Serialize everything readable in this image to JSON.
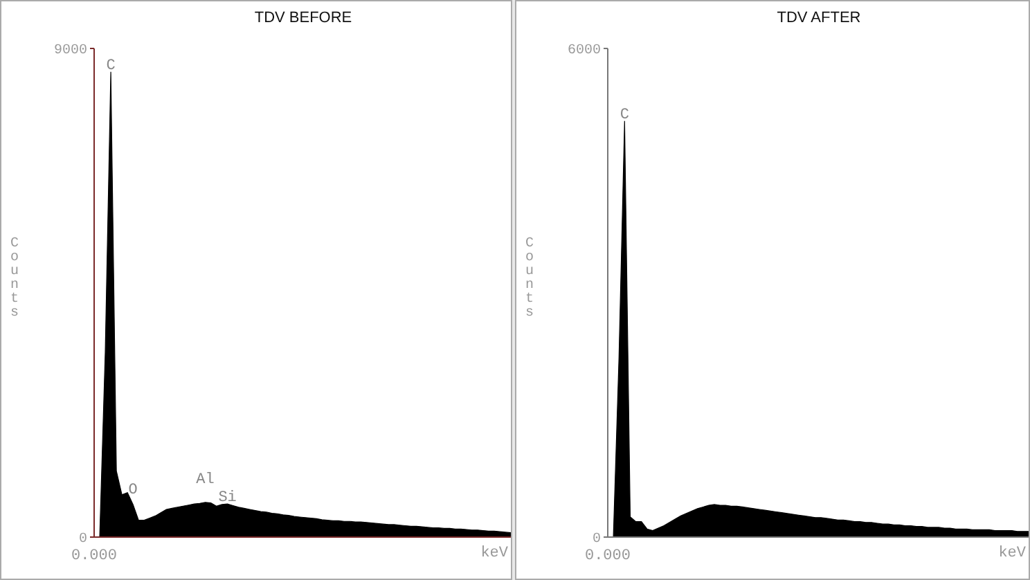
{
  "chart_data": [
    {
      "type": "area",
      "title": "TDV BEFORE",
      "xlabel": "keV",
      "ylabel": "Counts",
      "annotations": [
        "C",
        "O",
        "Al",
        "Si"
      ],
      "categories": [
        "0.000",
        null,
        null,
        null,
        null,
        null,
        null,
        null,
        null,
        null,
        null,
        null,
        null,
        null,
        null,
        null,
        null,
        null,
        null,
        null,
        null,
        null,
        null,
        null,
        null,
        null,
        null,
        null,
        null,
        null,
        null,
        null,
        null,
        null,
        null,
        null,
        null,
        null,
        null,
        null,
        null,
        null,
        null,
        null,
        null,
        null,
        null,
        null,
        null,
        null,
        null,
        null,
        null,
        null,
        null,
        null,
        null,
        null,
        null,
        null,
        null,
        null,
        null,
        null,
        null,
        null,
        null,
        null,
        null,
        null,
        null,
        null,
        null,
        null,
        null,
        null
      ],
      "series": [
        {
          "color": "#000000",
          "values": [
            0,
            0,
            3400,
            8570,
            1220,
            780,
            820,
            600,
            310,
            310,
            350,
            390,
            450,
            510,
            530,
            550,
            570,
            590,
            610,
            620,
            640,
            630,
            570,
            600,
            610,
            580,
            550,
            530,
            510,
            490,
            470,
            460,
            440,
            430,
            410,
            400,
            380,
            370,
            360,
            350,
            340,
            320,
            310,
            300,
            300,
            290,
            290,
            280,
            280,
            270,
            260,
            250,
            240,
            230,
            230,
            220,
            210,
            200,
            200,
            190,
            180,
            170,
            170,
            160,
            160,
            150,
            150,
            140,
            130,
            130,
            120,
            110,
            110,
            100,
            90,
            80
          ]
        }
      ],
      "ylim": [
        0,
        9000
      ],
      "yticks": [
        0,
        9000
      ]
    },
    {
      "type": "area",
      "title": "TDV AFTER",
      "xlabel": "keV",
      "ylabel": "Counts",
      "annotations": [
        "C"
      ],
      "categories": [
        "0.000",
        null,
        null,
        null,
        null,
        null,
        null,
        null,
        null,
        null,
        null,
        null,
        null,
        null,
        null,
        null,
        null,
        null,
        null,
        null,
        null,
        null,
        null,
        null,
        null,
        null,
        null,
        null,
        null,
        null,
        null,
        null,
        null,
        null,
        null,
        null,
        null,
        null,
        null,
        null,
        null,
        null,
        null,
        null,
        null,
        null,
        null,
        null,
        null,
        null,
        null,
        null,
        null,
        null,
        null,
        null,
        null,
        null,
        null,
        null,
        null,
        null,
        null,
        null,
        null,
        null,
        null,
        null,
        null,
        null,
        null,
        null,
        null,
        null,
        null,
        null
      ],
      "series": [
        {
          "color": "#000000",
          "values": [
            0,
            0,
            2200,
            5110,
            250,
            190,
            190,
            100,
            80,
            110,
            140,
            180,
            220,
            260,
            290,
            320,
            350,
            370,
            390,
            400,
            390,
            390,
            380,
            380,
            370,
            360,
            350,
            340,
            330,
            320,
            310,
            300,
            290,
            280,
            270,
            260,
            250,
            240,
            240,
            230,
            220,
            210,
            210,
            200,
            190,
            190,
            180,
            180,
            170,
            160,
            160,
            150,
            150,
            140,
            140,
            130,
            130,
            120,
            120,
            120,
            110,
            110,
            100,
            100,
            100,
            90,
            90,
            90,
            90,
            80,
            80,
            80,
            80,
            70,
            70,
            70
          ]
        }
      ],
      "ylim": [
        0,
        6000
      ],
      "yticks": [
        0,
        6000
      ]
    }
  ]
}
